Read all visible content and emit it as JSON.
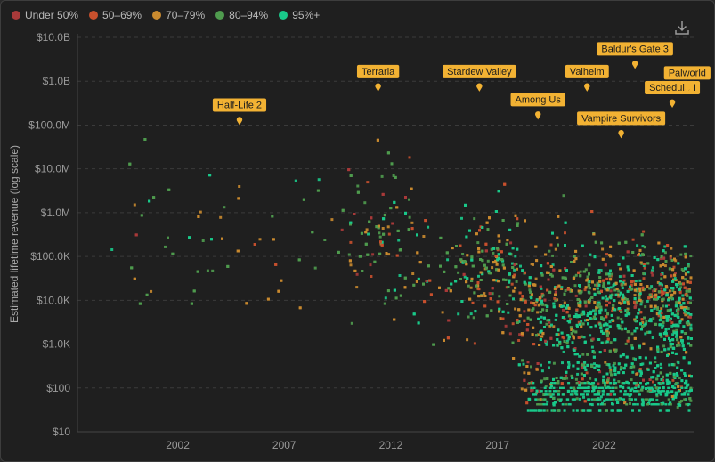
{
  "legend": [
    {
      "label": "Under 50%",
      "color": "#a83a3a"
    },
    {
      "label": "50–69%",
      "color": "#c7502d"
    },
    {
      "label": "70–79%",
      "color": "#c98a2f"
    },
    {
      "label": "80–94%",
      "color": "#4f9b4e"
    },
    {
      "label": "95%+",
      "color": "#19c98a"
    }
  ],
  "download_icon": "download-icon",
  "chart_data": {
    "type": "scatter",
    "title": "",
    "xlabel": "",
    "ylabel": "Estimated lifetime revenue (log scale)",
    "y_scale": "log",
    "ylim": [
      10,
      10000000000
    ],
    "xlim": [
      1997.3,
      2026.2
    ],
    "x_ticks": [
      {
        "value": 2002,
        "label": "2002"
      },
      {
        "value": 2007,
        "label": "2007"
      },
      {
        "value": 2012,
        "label": "2012"
      },
      {
        "value": 2017,
        "label": "2017"
      },
      {
        "value": 2022,
        "label": "2022"
      }
    ],
    "y_ticks": [
      {
        "value": 10,
        "label": "$10"
      },
      {
        "value": 100,
        "label": "$100"
      },
      {
        "value": 1000,
        "label": "$1.0K"
      },
      {
        "value": 10000,
        "label": "$10.0K"
      },
      {
        "value": 100000,
        "label": "$100.0K"
      },
      {
        "value": 1000000,
        "label": "$1.0M"
      },
      {
        "value": 10000000,
        "label": "$10.0M"
      },
      {
        "value": 100000000,
        "label": "$100.0M"
      },
      {
        "value": 1000000000,
        "label": "$1.0B"
      },
      {
        "value": 10000000000,
        "label": "$10.0B"
      }
    ],
    "grid": true,
    "legend_position": "top-left",
    "annotations": [
      {
        "label": "Half-Life 2",
        "x": 2004.9,
        "y": 120000000
      },
      {
        "label": "Terraria",
        "x": 2011.4,
        "y": 700000000
      },
      {
        "label": "Stardew Valley",
        "x": 2016.15,
        "y": 700000000
      },
      {
        "label": "Among Us",
        "x": 2018.9,
        "y": 160000000
      },
      {
        "label": "Valheim",
        "x": 2021.2,
        "y": 700000000
      },
      {
        "label": "Baldur's Gate 3",
        "x": 2023.45,
        "y": 2300000000
      },
      {
        "label": "Vampire Survivors",
        "x": 2022.8,
        "y": 60000000
      },
      {
        "label": "Schedule I",
        "x": 2025.2,
        "y": 300000000
      },
      {
        "label": "Palworld",
        "x": 2025.9,
        "y": 650000000
      }
    ]
  }
}
